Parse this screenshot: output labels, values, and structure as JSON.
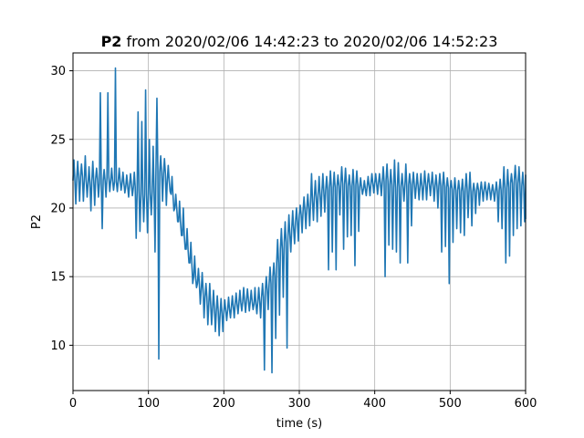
{
  "chart_data": {
    "type": "line",
    "title_bold": "P2",
    "title_rest": " from 2020/02/06 14:42:23 to 2020/02/06 14:52:23",
    "xlabel": "time (s)",
    "ylabel": "P2",
    "xlim": [
      0,
      600
    ],
    "ylim": [
      6.7,
      31.3
    ],
    "xticks": [
      0,
      100,
      200,
      300,
      400,
      500,
      600
    ],
    "yticks": [
      10,
      15,
      20,
      25,
      30
    ],
    "grid": true,
    "line_color": "#1f77b4",
    "series": [
      {
        "x": [
          0,
          5,
          10,
          15,
          20,
          25,
          30,
          35,
          40,
          45,
          50,
          55,
          60,
          65,
          70,
          75,
          80,
          85,
          90,
          95,
          100,
          105,
          110,
          115,
          120,
          125,
          130,
          135,
          140,
          145,
          150,
          155,
          160,
          165,
          170,
          175,
          180,
          185,
          190,
          195,
          200,
          205,
          210,
          215,
          220,
          225,
          230,
          235,
          240,
          245,
          250,
          255,
          260,
          265,
          270,
          275,
          280,
          285,
          290,
          295,
          300,
          305,
          310,
          315,
          320,
          325,
          330,
          335,
          340,
          345,
          350,
          355,
          360,
          365,
          370,
          375,
          380,
          385,
          390,
          395,
          400,
          405,
          410,
          415,
          420,
          425,
          430,
          435,
          440,
          445,
          450,
          455,
          460,
          465,
          470,
          475,
          480,
          485,
          490,
          495,
          500,
          505,
          510,
          515,
          520,
          525,
          530,
          535,
          540,
          545,
          550,
          555,
          560,
          565,
          570,
          575,
          580,
          585,
          590,
          595,
          600
        ],
        "y_mid": [
          22.0,
          22.2,
          22.3,
          22.0,
          21.8,
          22.0,
          22.1,
          21.8,
          22.0,
          22.2,
          22.0,
          21.9,
          22.0,
          21.8,
          21.6,
          21.7,
          21.5,
          21.2,
          21.0,
          21.0,
          21.0,
          21.2,
          22.8,
          22.6,
          22.5,
          22.0,
          21.0,
          20.0,
          19.0,
          18.0,
          17.0,
          16.0,
          15.0,
          14.5,
          14.0,
          13.5,
          13.0,
          12.7,
          12.5,
          12.3,
          12.5,
          12.6,
          12.8,
          13.0,
          13.1,
          13.2,
          13.3,
          13.2,
          13.0,
          13.2,
          13.5,
          14.0,
          14.5,
          15.0,
          16.0,
          17.0,
          17.5,
          18.0,
          18.5,
          19.0,
          19.5,
          19.8,
          20.0,
          20.5,
          20.8,
          21.0,
          21.2,
          21.3,
          21.5,
          21.5,
          21.6,
          21.8,
          21.7,
          21.6,
          21.6,
          21.7,
          21.5,
          21.4,
          21.6,
          21.8,
          21.8,
          21.8,
          21.9,
          22.0,
          21.7,
          21.5,
          21.5,
          21.6,
          21.6,
          21.7,
          21.7,
          21.6,
          21.6,
          21.7,
          21.8,
          21.7,
          21.6,
          21.6,
          21.6,
          21.5,
          21.4,
          21.3,
          21.3,
          21.2,
          21.4,
          21.2,
          21.2,
          21.3,
          21.3,
          21.3,
          21.3,
          21.2,
          21.2,
          21.3,
          21.4,
          21.5,
          21.8,
          22.0,
          21.8,
          21.6,
          21.6
        ],
        "y_min": [
          20.3,
          20.5,
          20.5,
          20.8,
          19.8,
          20.2,
          20.8,
          18.5,
          20.8,
          21.2,
          21.3,
          21.2,
          21.3,
          21.1,
          20.8,
          20.9,
          17.8,
          18.3,
          19.0,
          18.2,
          19.5,
          16.8,
          9.0,
          20.5,
          20.2,
          21.2,
          19.8,
          19.0,
          18.0,
          17.0,
          16.0,
          14.5,
          14.2,
          13.0,
          12.0,
          11.5,
          11.5,
          11.0,
          10.7,
          11.0,
          11.8,
          12.0,
          12.0,
          12.3,
          12.5,
          12.4,
          12.5,
          12.6,
          12.3,
          12.0,
          8.2,
          12.6,
          8.0,
          10.5,
          12.2,
          13.5,
          9.8,
          16.8,
          17.4,
          17.6,
          18.2,
          18.5,
          18.7,
          19.1,
          19.0,
          19.4,
          19.7,
          15.5,
          16.8,
          15.5,
          19.5,
          17.0,
          17.9,
          18.0,
          15.8,
          18.3,
          21.0,
          20.9,
          20.9,
          21.1,
          21.0,
          20.9,
          15.0,
          17.3,
          17.0,
          16.8,
          16.0,
          20.5,
          16.0,
          18.7,
          20.7,
          20.6,
          20.6,
          20.6,
          20.9,
          20.5,
          20.0,
          16.8,
          17.2,
          14.5,
          17.5,
          18.5,
          18.2,
          18.0,
          19.3,
          18.7,
          19.6,
          20.2,
          20.5,
          20.6,
          20.6,
          20.5,
          19.0,
          18.5,
          16.0,
          16.5,
          18.0,
          18.5,
          18.7,
          19.0,
          19.2
        ],
        "y_max": [
          23.5,
          23.4,
          23.2,
          23.8,
          23.0,
          23.4,
          22.9,
          28.4,
          22.8,
          28.4,
          22.9,
          30.2,
          22.9,
          22.6,
          22.4,
          22.5,
          22.6,
          27.0,
          26.3,
          28.6,
          25.0,
          24.5,
          28.0,
          23.8,
          23.6,
          23.1,
          22.3,
          21.0,
          20.5,
          20.0,
          18.5,
          17.5,
          16.5,
          15.6,
          15.3,
          14.5,
          14.5,
          14.0,
          13.6,
          13.4,
          13.3,
          13.5,
          13.6,
          13.8,
          14.0,
          14.2,
          14.1,
          14.0,
          14.2,
          14.2,
          14.5,
          15.0,
          15.7,
          16.0,
          17.7,
          18.5,
          19.0,
          19.5,
          19.8,
          20.0,
          20.2,
          20.8,
          21.0,
          22.5,
          22.0,
          22.3,
          22.5,
          22.3,
          22.7,
          22.6,
          22.4,
          23.0,
          22.9,
          22.4,
          22.8,
          22.7,
          22.2,
          22.0,
          22.3,
          22.5,
          22.5,
          22.5,
          23.0,
          23.2,
          22.8,
          23.5,
          23.3,
          22.5,
          23.2,
          22.5,
          22.6,
          22.5,
          22.5,
          22.7,
          22.5,
          22.6,
          22.4,
          22.5,
          22.6,
          22.2,
          22.0,
          22.2,
          22.0,
          22.1,
          22.5,
          22.6,
          21.8,
          21.8,
          21.9,
          21.9,
          21.8,
          21.7,
          21.9,
          22.1,
          23.0,
          22.8,
          22.5,
          23.1,
          23.0,
          22.6,
          22.4
        ]
      }
    ]
  }
}
